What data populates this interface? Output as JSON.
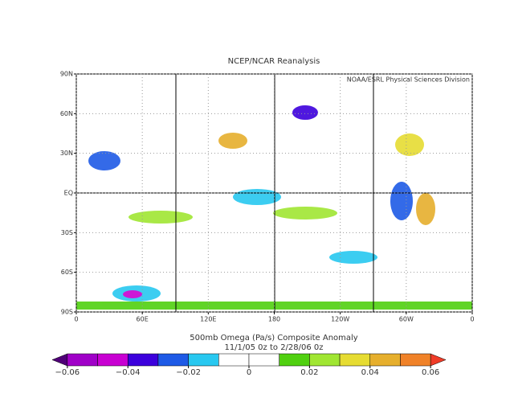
{
  "chart_data": {
    "type": "map",
    "title": "NCEP/NCAR Reanalysis",
    "credit": "NOAA/ESRL Physical Sciences Division",
    "xlim": [
      0,
      360
    ],
    "ylim": [
      -90,
      90
    ],
    "xticks": [
      {
        "value": 0,
        "label": "0"
      },
      {
        "value": 60,
        "label": "60E"
      },
      {
        "value": 120,
        "label": "120E"
      },
      180,
      {
        "value": 240,
        "label": "120W"
      },
      {
        "value": 300,
        "label": "60W"
      },
      {
        "value": 360,
        "label": "0"
      }
    ],
    "yticks": [
      {
        "value": 90,
        "label": "90N"
      },
      {
        "value": 60,
        "label": "60N"
      },
      {
        "value": 30,
        "label": "30N"
      },
      {
        "value": 0,
        "label": "EQ"
      },
      {
        "value": -30,
        "label": "30S"
      },
      {
        "value": -60,
        "label": "60S"
      },
      {
        "value": -90,
        "label": "90S"
      }
    ],
    "caption": [
      "500mb Omega (Pa/s)   Composite Anomaly",
      "11/1/05 0z  to 2/28/06 0z"
    ],
    "colorbar": {
      "lim": [
        -0.065,
        0.065
      ],
      "levels": [
        -0.06,
        -0.05,
        -0.04,
        -0.03,
        -0.02,
        -0.01,
        0,
        0.01,
        0.02,
        0.03,
        0.04,
        0.05,
        0.06
      ],
      "colors": [
        "#a000c8",
        "#c800d2",
        "#3c00dc",
        "#1e5ae6",
        "#28c8f0",
        "#ffffff",
        "#ffffff",
        "#50d010",
        "#a0e632",
        "#e6dc32",
        "#e6af2d",
        "#f08228"
      ],
      "under": "#500078",
      "over": "#f03c28",
      "ticks": [
        {
          "value": -0.06,
          "label": "−0.06"
        },
        {
          "value": -0.04,
          "label": "−0.04"
        },
        {
          "value": -0.02,
          "label": "−0.02"
        },
        0,
        0.02,
        0.04,
        0.06
      ]
    }
  }
}
